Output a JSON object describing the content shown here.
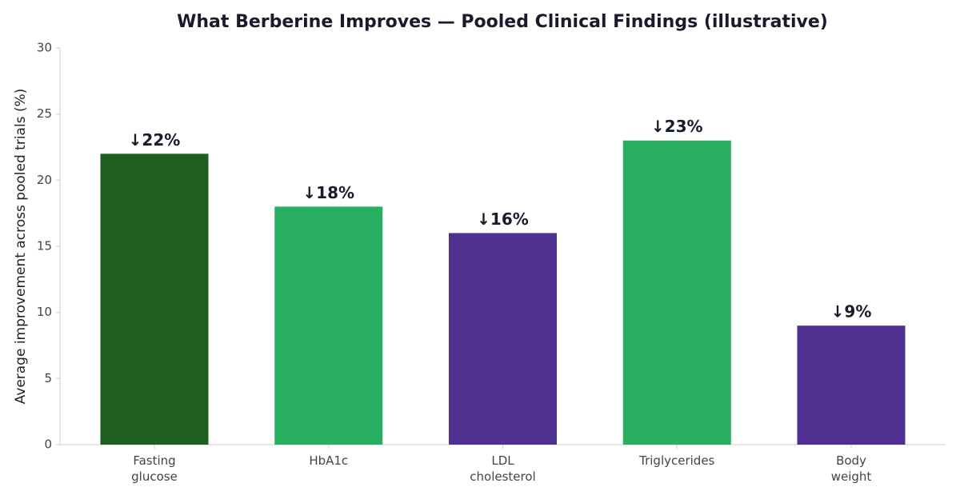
{
  "chart_data": {
    "type": "bar",
    "title": "What Berberine Improves — Pooled Clinical Findings (illustrative)",
    "y_label": "Average improvement across pooled trials (%)",
    "categories": [
      "Fasting\nglucose",
      "HbA1c",
      "LDL\ncholesterol",
      "Triglycerides",
      "Body\nweight"
    ],
    "values": [
      22,
      18,
      16,
      23,
      9
    ],
    "value_labels": [
      "↓22%",
      "↓18%",
      "↓16%",
      "↓23%",
      "↓9%"
    ],
    "colors": [
      "#1e5e20",
      "#27ae60",
      "#4f2f8f",
      "#27ae60",
      "#4f2f8f"
    ],
    "ylim": [
      0,
      30
    ],
    "yticks": [
      0,
      5,
      10,
      15,
      20,
      25,
      30
    ],
    "grid": false
  }
}
